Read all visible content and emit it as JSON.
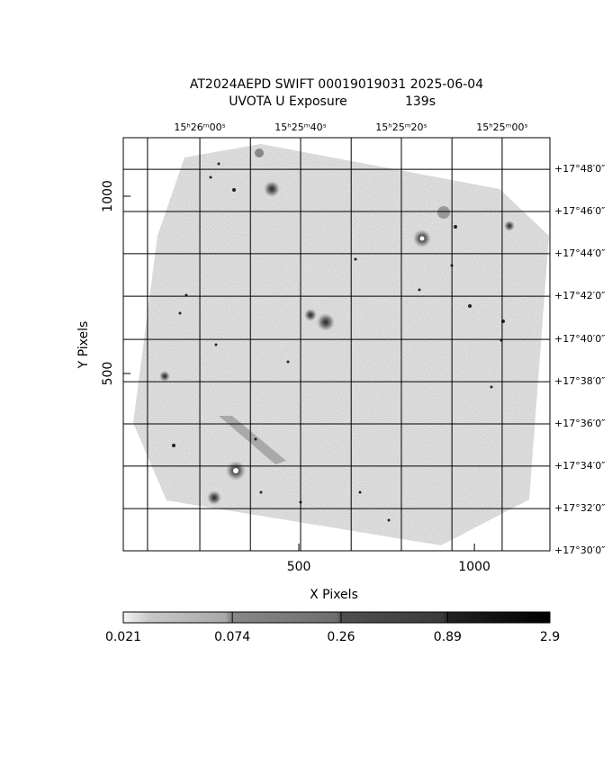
{
  "chart_data": {
    "type": "image",
    "title": "AT2024AEPD SWIFT 00019019031 2025-06-04",
    "subtitle": "UVOTA U Exposure",
    "exposure": "139s",
    "x_label": "X Pixels",
    "y_label": "Y Pixels",
    "xlim": [
      0,
      1215
    ],
    "ylim": [
      0,
      1165
    ],
    "xticks": [
      500,
      1000
    ],
    "yticks": [
      500,
      1000
    ],
    "x2ticks": [
      69,
      {
        "value": 218,
        "label": "15ʰ26ᵐ00ˢ"
      },
      362,
      {
        "value": 505,
        "label": "15ʰ25ᵐ40ˢ"
      },
      649,
      {
        "value": 792,
        "label": "15ʰ25ᵐ20ˢ"
      },
      936,
      {
        "value": 1079,
        "label": "15ʰ25ᵐ00ˢ"
      }
    ],
    "y2ticks": [
      {
        "value": 0,
        "label": "+17°30′0″"
      },
      {
        "value": 119,
        "label": "+17°32′0″"
      },
      {
        "value": 239,
        "label": "+17°34′0″"
      },
      {
        "value": 358,
        "label": "+17°36′0″"
      },
      {
        "value": 477,
        "label": "+17°38′0″"
      },
      {
        "value": 596,
        "label": "+17°40′0″"
      },
      {
        "value": 718,
        "label": "+17°42′0″"
      },
      {
        "value": 838,
        "label": "+17°44′0″"
      },
      {
        "value": 957,
        "label": "+17°46′0″"
      },
      {
        "value": 1076,
        "label": "+17°48′0″"
      }
    ],
    "grid": true,
    "colorbar": {
      "lim": [
        0.021,
        2.9
      ],
      "ticks": [
        0.021,
        0.074,
        0.26,
        0.89,
        2.9
      ],
      "log": true
    }
  }
}
